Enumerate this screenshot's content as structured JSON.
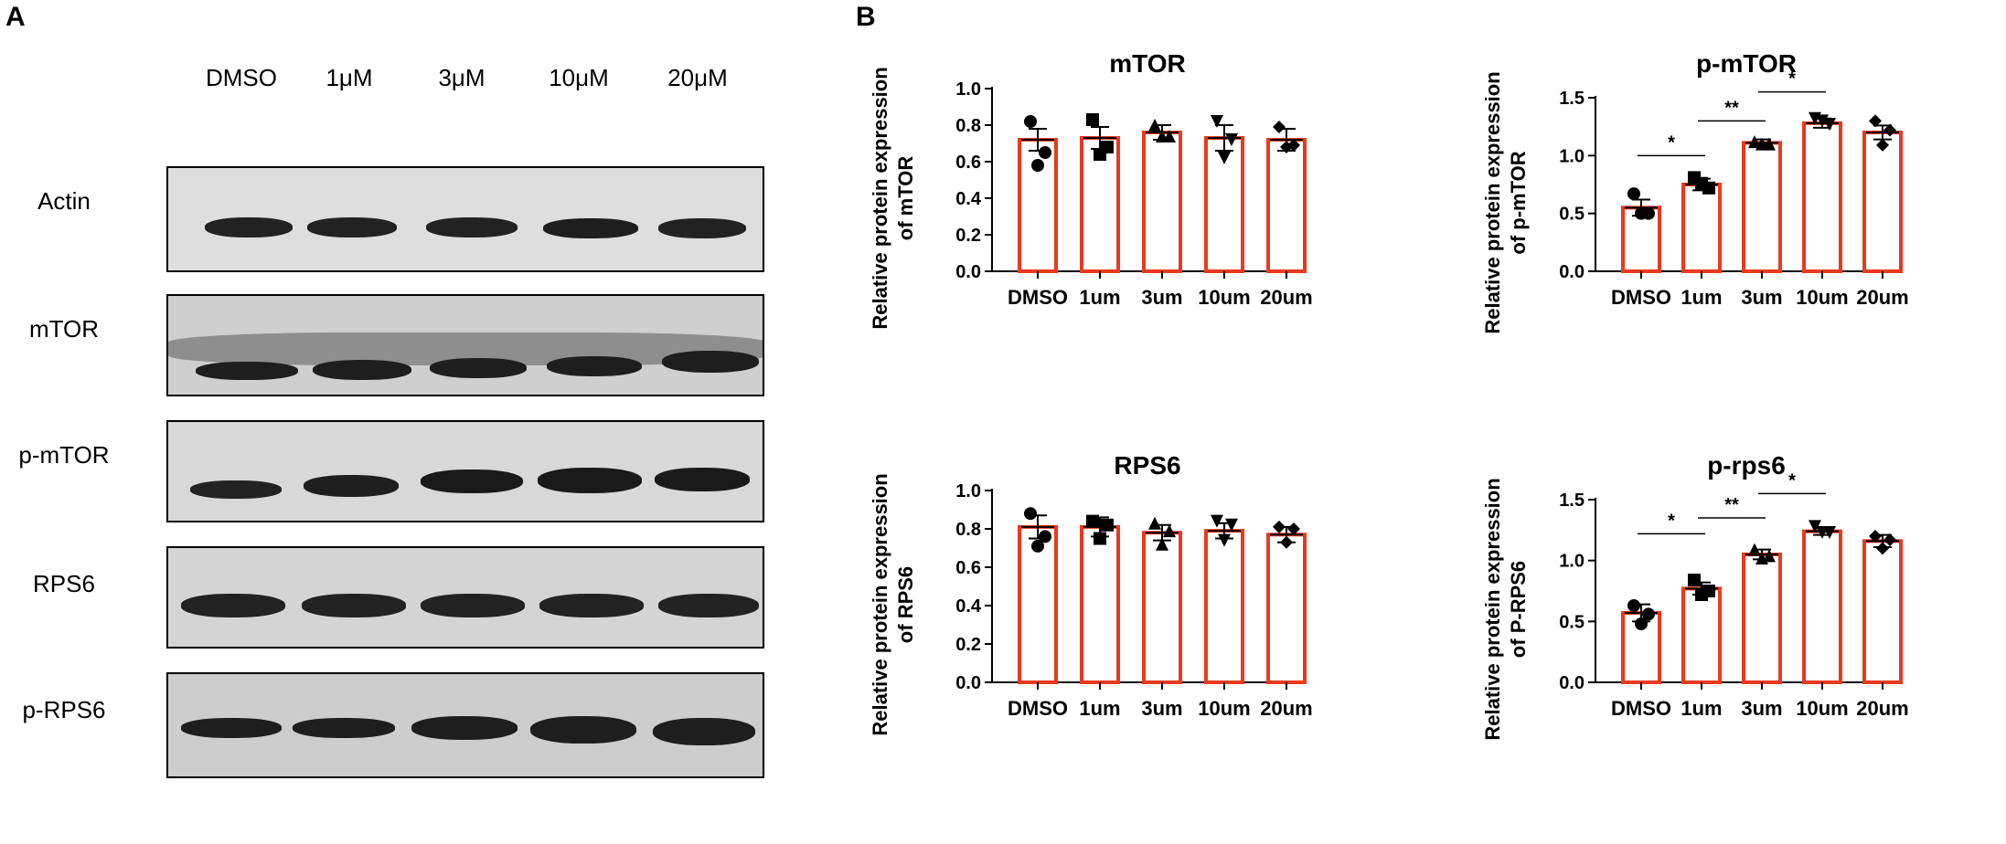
{
  "panels": {
    "a": "A",
    "b": "B"
  },
  "blot": {
    "lanes": [
      "DMSO",
      "1μM",
      "3μM",
      "10μM",
      "20μM"
    ],
    "rows": [
      "Actin",
      "mTOR",
      "p-mTOR",
      "RPS6",
      "p-RPS6"
    ]
  },
  "colors": {
    "bar": "#e83a1e",
    "marker": "#000000",
    "membrane": "#d6d6d6",
    "band": "#1e1e1e"
  },
  "chart_data": [
    {
      "type": "bar",
      "title": "mTOR",
      "ylabel": "Relative protein expression of mTOR",
      "categories": [
        "DMSO",
        "1um",
        "3um",
        "10um",
        "20um"
      ],
      "values": [
        0.72,
        0.73,
        0.76,
        0.73,
        0.72
      ],
      "errors": [
        0.06,
        0.06,
        0.04,
        0.07,
        0.06
      ],
      "points": [
        [
          0.82,
          0.65,
          0.58
        ],
        [
          0.83,
          0.68,
          0.64
        ],
        [
          0.8,
          0.74,
          0.74
        ],
        [
          0.82,
          0.72,
          0.62
        ],
        [
          0.79,
          0.69,
          0.68
        ]
      ],
      "markers": [
        "circle",
        "square",
        "triangle-up",
        "triangle-down",
        "diamond"
      ],
      "ylim": [
        0,
        1.0
      ],
      "yticks": [
        0.0,
        0.2,
        0.4,
        0.6,
        0.8,
        1.0
      ],
      "significance": []
    },
    {
      "type": "bar",
      "title": "p-mTOR",
      "ylabel": "Relative protein expression of p-mTOR",
      "categories": [
        "DMSO",
        "1um",
        "3um",
        "10um",
        "20um"
      ],
      "values": [
        0.55,
        0.75,
        1.11,
        1.28,
        1.2
      ],
      "errors": [
        0.07,
        0.05,
        0.03,
        0.04,
        0.06
      ],
      "points": [
        [
          0.67,
          0.5,
          0.5
        ],
        [
          0.81,
          0.72,
          0.76
        ],
        [
          1.12,
          1.1,
          1.1
        ],
        [
          1.32,
          1.27,
          1.3
        ],
        [
          1.3,
          1.22,
          1.09
        ]
      ],
      "markers": [
        "circle",
        "square",
        "triangle-up",
        "triangle-down",
        "diamond"
      ],
      "ylim": [
        0,
        1.5
      ],
      "yticks": [
        0.0,
        0.5,
        1.0,
        1.5
      ],
      "significance": [
        {
          "from": 0,
          "to": 1,
          "label": "*",
          "y": 1.0
        },
        {
          "from": 1,
          "to": 2,
          "label": "**",
          "y": 1.3
        },
        {
          "from": 2,
          "to": 3,
          "label": "*",
          "y": 1.55
        }
      ]
    },
    {
      "type": "bar",
      "title": "RPS6",
      "ylabel": "Relative protein expression of RPS6",
      "categories": [
        "DMSO",
        "1um",
        "3um",
        "10um",
        "20um"
      ],
      "values": [
        0.81,
        0.81,
        0.78,
        0.79,
        0.77
      ],
      "errors": [
        0.06,
        0.05,
        0.04,
        0.04,
        0.04
      ],
      "points": [
        [
          0.88,
          0.76,
          0.71
        ],
        [
          0.84,
          0.82,
          0.75
        ],
        [
          0.83,
          0.79,
          0.72
        ],
        [
          0.84,
          0.82,
          0.74
        ],
        [
          0.81,
          0.8,
          0.73
        ]
      ],
      "markers": [
        "circle",
        "square",
        "triangle-up",
        "triangle-down",
        "diamond"
      ],
      "ylim": [
        0,
        1.0
      ],
      "yticks": [
        0.0,
        0.2,
        0.4,
        0.6,
        0.8,
        1.0
      ],
      "significance": []
    },
    {
      "type": "bar",
      "title": "p-rps6",
      "ylabel": "Relative protein expression of P-RPS6",
      "categories": [
        "DMSO",
        "1um",
        "3um",
        "10um",
        "20um"
      ],
      "values": [
        0.57,
        0.77,
        1.05,
        1.24,
        1.16
      ],
      "errors": [
        0.07,
        0.05,
        0.04,
        0.03,
        0.05
      ],
      "points": [
        [
          0.63,
          0.56,
          0.48
        ],
        [
          0.84,
          0.75,
          0.72
        ],
        [
          1.09,
          1.04,
          1.02
        ],
        [
          1.28,
          1.23,
          1.23
        ],
        [
          1.2,
          1.17,
          1.1
        ]
      ],
      "markers": [
        "circle",
        "square",
        "triangle-up",
        "triangle-down",
        "diamond"
      ],
      "ylim": [
        0,
        1.5
      ],
      "yticks": [
        0.0,
        0.5,
        1.0,
        1.5
      ],
      "significance": [
        {
          "from": 0,
          "to": 1,
          "label": "*",
          "y": 1.22
        },
        {
          "from": 1,
          "to": 2,
          "label": "**",
          "y": 1.35
        },
        {
          "from": 2,
          "to": 3,
          "label": "*",
          "y": 1.55
        }
      ]
    }
  ]
}
